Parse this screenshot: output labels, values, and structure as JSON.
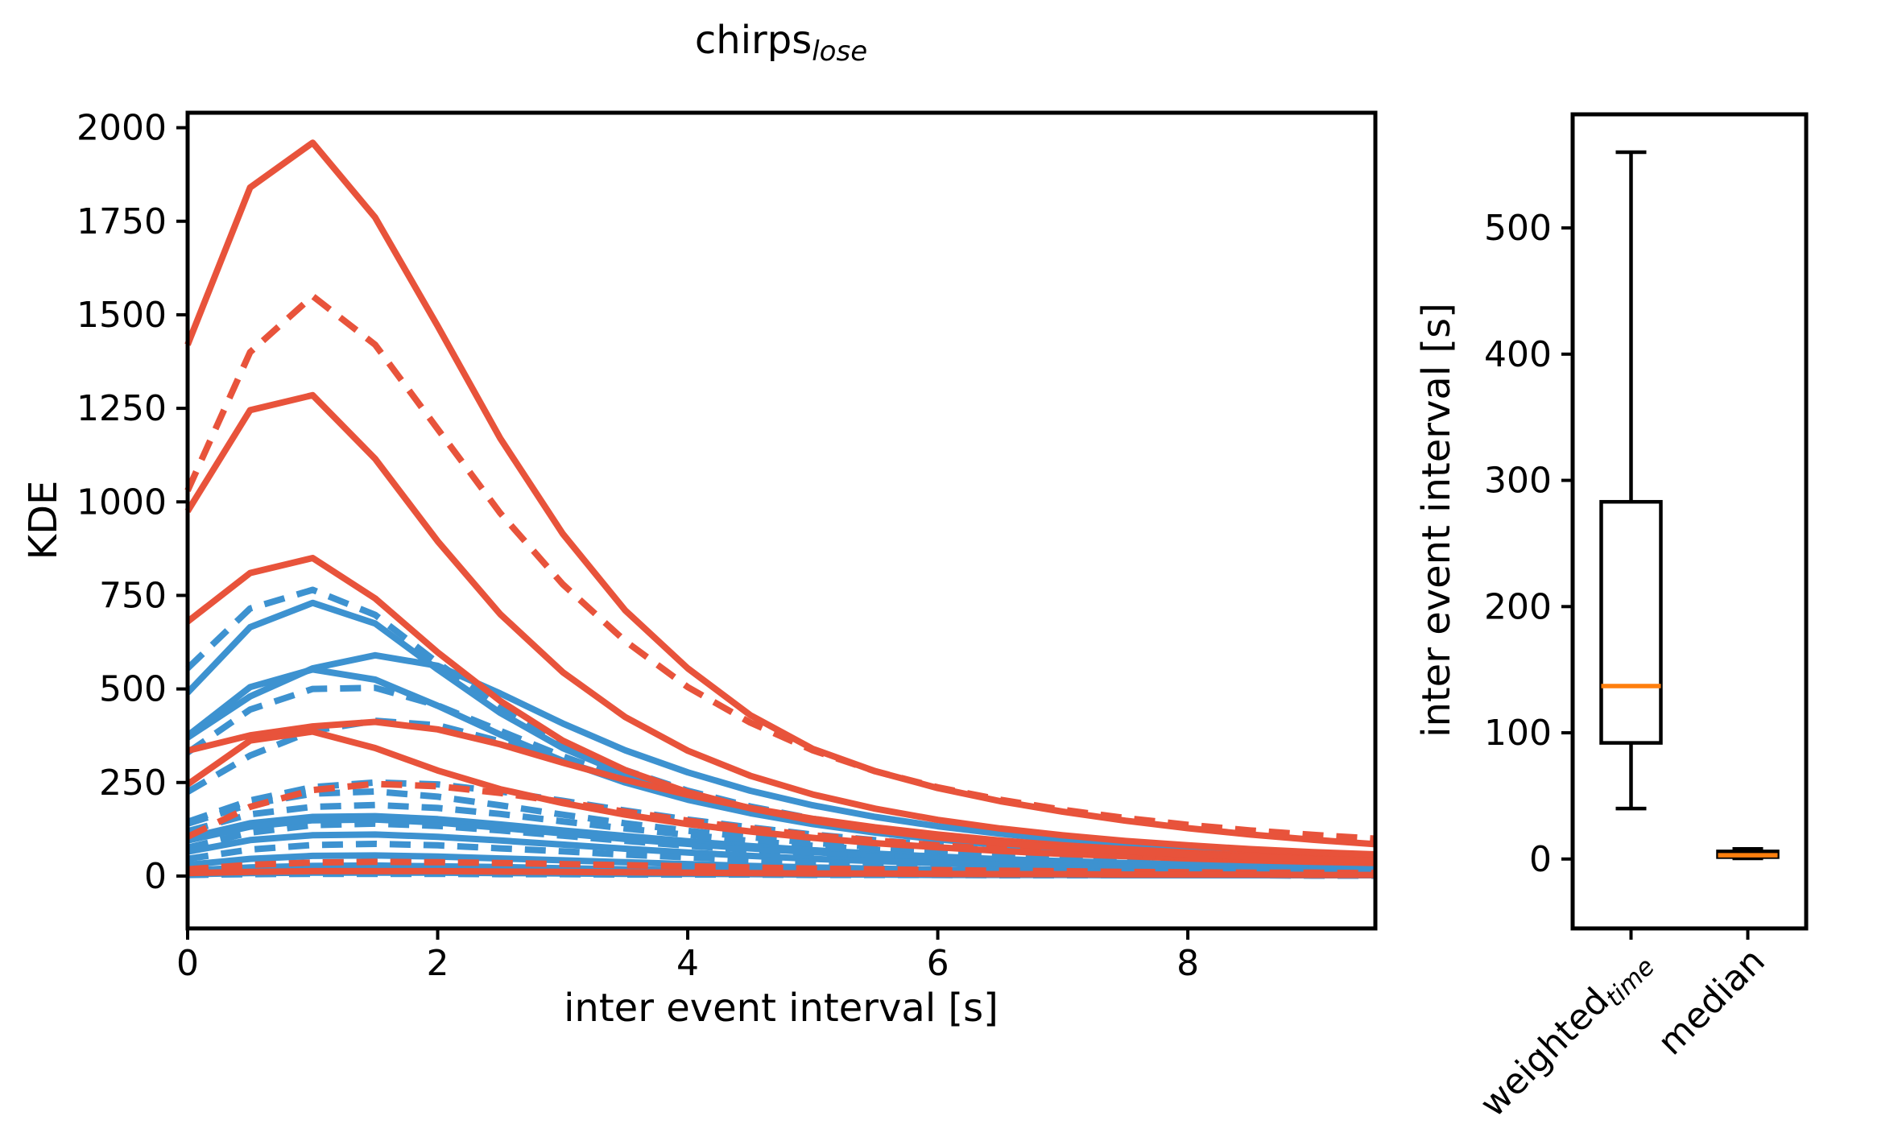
{
  "title": {
    "main": "chirps",
    "sub": "lose"
  },
  "palette": {
    "red": "#e8533b",
    "blue": "#3d92d0",
    "median_line": "#ff7f0e",
    "axis": "#000000",
    "background": "#ffffff"
  },
  "chart_data": [
    {
      "type": "line",
      "title": "chirps_lose",
      "xlabel": "inter event interval [s]",
      "ylabel": "KDE",
      "xlim": [
        0,
        9.5
      ],
      "ylim": [
        -140,
        2040
      ],
      "xticks": [
        0,
        2,
        4,
        6,
        8
      ],
      "yticks": [
        0,
        250,
        500,
        750,
        1000,
        1250,
        1500,
        1750,
        2000
      ],
      "grid": false,
      "legend": "none",
      "x_step": 0.5,
      "x": [
        0,
        0.5,
        1,
        1.5,
        2,
        2.5,
        3,
        3.5,
        4,
        4.5,
        5,
        5.5,
        6,
        6.5,
        7,
        7.5,
        8,
        8.5,
        9,
        9.5
      ],
      "series": [
        {
          "name": "blue-dashed-1",
          "color": "blue",
          "style": "dashed",
          "values": [
            555,
            715,
            765,
            698,
            570,
            452,
            355,
            283,
            228,
            186,
            153,
            128,
            108,
            92,
            79,
            69,
            61,
            54,
            48,
            44
          ]
        },
        {
          "name": "blue-solid-1",
          "color": "blue",
          "style": "solid",
          "values": [
            490,
            665,
            730,
            675,
            552,
            436,
            342,
            272,
            219,
            179,
            147,
            123,
            104,
            88,
            76,
            66,
            58,
            52,
            46,
            42
          ]
        },
        {
          "name": "blue-solid-2",
          "color": "blue",
          "style": "solid",
          "values": [
            370,
            480,
            555,
            590,
            562,
            488,
            408,
            336,
            277,
            228,
            189,
            158,
            133,
            113,
            97,
            84,
            74,
            65,
            58,
            53
          ]
        },
        {
          "name": "blue-solid-3",
          "color": "blue",
          "style": "solid",
          "values": [
            375,
            505,
            552,
            525,
            455,
            378,
            308,
            250,
            204,
            168,
            139,
            116,
            98,
            83,
            72,
            62,
            55,
            49,
            44,
            40
          ]
        },
        {
          "name": "blue-dashed-2",
          "color": "blue",
          "style": "dashed",
          "values": [
            330,
            445,
            500,
            503,
            456,
            388,
            320,
            261,
            213,
            175,
            144,
            120,
            101,
            86,
            74,
            64,
            56,
            50,
            45,
            41
          ]
        },
        {
          "name": "blue-dashed-3",
          "color": "blue",
          "style": "dashed",
          "values": [
            225,
            322,
            388,
            415,
            403,
            360,
            306,
            255,
            211,
            174,
            144,
            120,
            101,
            86,
            73,
            63,
            55,
            49,
            44,
            40
          ]
        },
        {
          "name": "blue-dashed-4",
          "color": "blue",
          "style": "dashed",
          "values": [
            145,
            202,
            238,
            250,
            245,
            226,
            201,
            175,
            151,
            130,
            111,
            96,
            83,
            72,
            63,
            56,
            50,
            45,
            41,
            38
          ]
        },
        {
          "name": "blue-dashed-5",
          "color": "blue",
          "style": "dashed",
          "values": [
            140,
            192,
            220,
            226,
            212,
            189,
            164,
            141,
            121,
            104,
            89,
            77,
            66,
            58,
            51,
            45,
            40,
            36,
            33,
            30
          ]
        },
        {
          "name": "blue-dashed-6",
          "color": "blue",
          "style": "dashed",
          "values": [
            120,
            165,
            185,
            190,
            182,
            166,
            146,
            127,
            110,
            94,
            81,
            70,
            61,
            53,
            46,
            41,
            36,
            33,
            30,
            28
          ]
        },
        {
          "name": "blue-solid-4",
          "color": "blue",
          "style": "solid",
          "values": [
            102,
            141,
            158,
            160,
            152,
            138,
            122,
            107,
            93,
            80,
            69,
            60,
            52,
            45,
            40,
            35,
            31,
            28,
            26,
            24
          ]
        },
        {
          "name": "blue-solid-5",
          "color": "blue",
          "style": "solid",
          "values": [
            95,
            132,
            149,
            151,
            143,
            129,
            114,
            99,
            86,
            74,
            64,
            55,
            48,
            42,
            37,
            32,
            29,
            26,
            24,
            22
          ]
        },
        {
          "name": "blue-dashed-7",
          "color": "blue",
          "style": "dashed",
          "values": [
            76,
            116,
            136,
            140,
            134,
            122,
            108,
            94,
            81,
            70,
            60,
            52,
            45,
            39,
            34,
            30,
            27,
            24,
            22,
            20
          ]
        },
        {
          "name": "blue-solid-6",
          "color": "blue",
          "style": "solid",
          "values": [
            65,
            96,
            109,
            111,
            105,
            95,
            84,
            73,
            63,
            54,
            46,
            40,
            35,
            30,
            27,
            24,
            21,
            19,
            17,
            16
          ]
        },
        {
          "name": "blue-dashed-8",
          "color": "blue",
          "style": "dashed",
          "values": [
            46,
            71,
            83,
            86,
            82,
            74,
            66,
            57,
            50,
            43,
            37,
            32,
            27,
            24,
            21,
            18,
            16,
            15,
            13,
            12
          ]
        },
        {
          "name": "blue-solid-7",
          "color": "blue",
          "style": "solid",
          "values": [
            30,
            46,
            54,
            55,
            52,
            47,
            42,
            37,
            32,
            27,
            23,
            20,
            17,
            15,
            13,
            12,
            10,
            9,
            9,
            8
          ]
        },
        {
          "name": "blue-dashed-9",
          "color": "blue",
          "style": "dashed",
          "values": [
            20,
            31,
            36,
            37,
            35,
            32,
            28,
            25,
            22,
            19,
            16,
            14,
            12,
            11,
            9,
            8,
            7,
            7,
            6,
            6
          ]
        },
        {
          "name": "blue-solid-8",
          "color": "blue",
          "style": "solid",
          "values": [
            15,
            23,
            27,
            28,
            26,
            24,
            21,
            18,
            16,
            14,
            12,
            10,
            9,
            8,
            7,
            6,
            5,
            5,
            4,
            4
          ]
        },
        {
          "name": "blue-solid-9",
          "color": "blue",
          "style": "solid",
          "values": [
            5,
            8,
            9,
            9,
            9,
            8,
            7,
            6,
            6,
            5,
            4,
            4,
            3,
            3,
            3,
            2,
            2,
            2,
            2,
            2
          ]
        },
        {
          "name": "blue-dashed-10",
          "color": "blue",
          "style": "dashed",
          "values": [
            3,
            5,
            6,
            6,
            6,
            5,
            5,
            4,
            4,
            4,
            3,
            3,
            3,
            2,
            2,
            2,
            2,
            2,
            1,
            1
          ]
        },
        {
          "name": "red-solid-low-1",
          "color": "red",
          "style": "solid",
          "values": [
            335,
            376,
            400,
            412,
            392,
            352,
            303,
            257,
            217,
            182,
            153,
            130,
            111,
            95,
            82,
            72,
            63,
            56,
            51,
            47
          ]
        },
        {
          "name": "red-solid-low-2",
          "color": "red",
          "style": "solid",
          "values": [
            245,
            362,
            386,
            342,
            282,
            232,
            195,
            164,
            139,
            119,
            102,
            88,
            77,
            67,
            59,
            53,
            47,
            42,
            38,
            35
          ]
        },
        {
          "name": "red-dashed-low-1",
          "color": "red",
          "style": "dashed",
          "values": [
            105,
            185,
            230,
            246,
            240,
            222,
            198,
            172,
            148,
            127,
            109,
            95,
            82,
            72,
            64,
            57,
            51,
            46,
            42,
            39
          ]
        },
        {
          "name": "red-dashed-low-2",
          "color": "red",
          "style": "dashed",
          "values": [
            18,
            30,
            36,
            38,
            37,
            35,
            32,
            29,
            26,
            23,
            20,
            18,
            16,
            14,
            13,
            11,
            10,
            9,
            9,
            8
          ]
        },
        {
          "name": "red-solid-low-3",
          "color": "red",
          "style": "solid",
          "values": [
            8,
            11,
            13,
            13,
            13,
            12,
            11,
            10,
            9,
            8,
            7,
            7,
            6,
            5,
            5,
            4,
            4,
            4,
            3,
            3
          ]
        },
        {
          "name": "red-solid-mid",
          "color": "red",
          "style": "solid",
          "values": [
            680,
            810,
            850,
            742,
            598,
            468,
            362,
            283,
            224,
            181,
            148,
            123,
            103,
            88,
            76,
            66,
            58,
            51,
            45,
            41
          ]
        },
        {
          "name": "red-solid-high-2",
          "color": "red",
          "style": "solid",
          "values": [
            975,
            1245,
            1285,
            1115,
            895,
            700,
            545,
            425,
            335,
            268,
            218,
            180,
            150,
            127,
            109,
            94,
            82,
            72,
            64,
            58
          ]
        },
        {
          "name": "red-dashed-high",
          "color": "red",
          "style": "dashed",
          "values": [
            1030,
            1400,
            1550,
            1420,
            1195,
            970,
            780,
            628,
            505,
            410,
            336,
            280,
            237,
            204,
            177,
            155,
            137,
            122,
            110,
            100
          ]
        },
        {
          "name": "red-solid-high-1",
          "color": "red",
          "style": "solid",
          "values": [
            1420,
            1840,
            1960,
            1760,
            1470,
            1170,
            915,
            710,
            555,
            430,
            340,
            280,
            235,
            200,
            172,
            148,
            128,
            111,
            97,
            85
          ]
        }
      ]
    },
    {
      "type": "box",
      "ylabel": "inter event interval [s]",
      "ylim": [
        -55,
        590
      ],
      "yticks": [
        0,
        100,
        200,
        300,
        400,
        500
      ],
      "grid": false,
      "categories": [
        {
          "main": "weighted",
          "sub": "time"
        },
        {
          "main": "median",
          "sub": ""
        }
      ],
      "boxes": [
        {
          "label": "weighted_time",
          "whislo": 40,
          "q1": 92,
          "med": 137,
          "q3": 283,
          "whishi": 560
        },
        {
          "label": "median",
          "whislo": 0.5,
          "q1": 1.5,
          "med": 3,
          "q3": 6,
          "whishi": 8
        }
      ]
    }
  ]
}
